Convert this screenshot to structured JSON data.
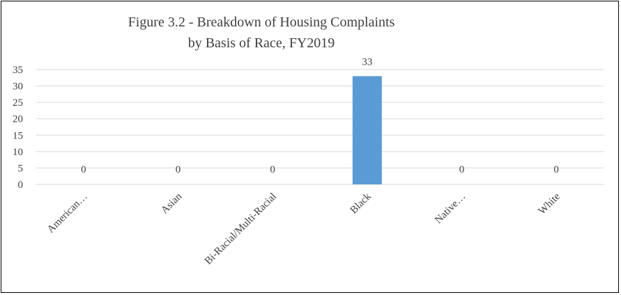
{
  "chart_data": {
    "type": "bar",
    "title_lines": [
      "Figure 3.2 - Breakdown of Housing Complaints",
      "by Basis of Race, FY2019"
    ],
    "categories": [
      "American…",
      "Asian",
      "Bi-Racial/Multi-Racial",
      "Black",
      "Native…",
      "White"
    ],
    "values": [
      0,
      0,
      0,
      33,
      0,
      0
    ],
    "data_labels": [
      "0",
      "0",
      "0",
      "33",
      "0",
      "0"
    ],
    "ylim": [
      0,
      35
    ],
    "yticks": [
      0,
      5,
      10,
      15,
      20,
      25,
      30,
      35
    ],
    "grid": true,
    "legend": "none",
    "bar_color": "#5b9bd5",
    "grid_color": "#d9d9d9",
    "text_color": "#404040"
  }
}
